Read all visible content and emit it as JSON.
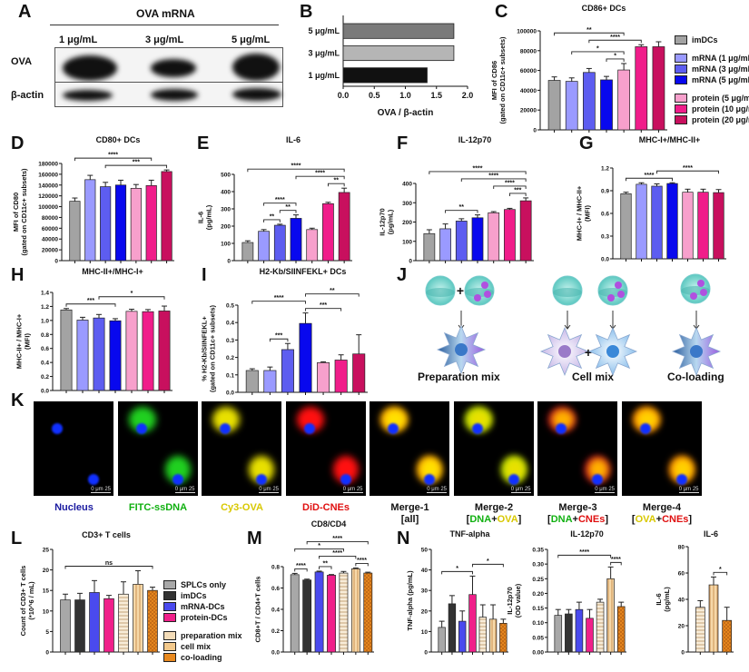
{
  "panels": {
    "A": "A",
    "B": "B",
    "C": "C",
    "D": "D",
    "E": "E",
    "F": "F",
    "G": "G",
    "H": "H",
    "I": "I",
    "J": "J",
    "K": "K",
    "L": "L",
    "M": "M",
    "N": "N"
  },
  "blot": {
    "header": "OVA mRNA",
    "lanes": [
      "1 μg/mL",
      "3 μg/mL",
      "5 μg/mL"
    ],
    "rows": [
      "OVA",
      "β-actin"
    ]
  },
  "colors": {
    "imDCs": "#a3a3a3",
    "mRNA1": "#9a9aff",
    "mRNA3": "#5d5df0",
    "mRNA5": "#0808ee",
    "protein5": "#f7a0cc",
    "protein10": "#f01d8a",
    "protein20": "#c8105e",
    "SPLCs": "#a8a8a8",
    "imDCs_dark": "#333333",
    "mRNA_DCs": "#4a4aee",
    "protein_DCs": "#f0208a",
    "prep": "#f3dcb8",
    "cellmix": "#f3c98c",
    "coload": "#e8891f",
    "blue_label": "#1a1aa0",
    "green_label": "#10b010",
    "yellow_label": "#d8c800",
    "red_label": "#e01010"
  },
  "legend_C": [
    {
      "label": "imDCs",
      "color": "#a3a3a3"
    },
    {
      "label": "mRNA (1 μg/mL)",
      "color": "#9a9aff"
    },
    {
      "label": "mRNA (3 μg/mL)",
      "color": "#5d5df0"
    },
    {
      "label": "mRNA (5 μg/mL)",
      "color": "#0808ee"
    },
    {
      "label": "protein (5 μg/mL)",
      "color": "#f7a0cc"
    },
    {
      "label": "protein (10 μg/mL)",
      "color": "#f01d8a"
    },
    {
      "label": "protein (20 μg/mL)",
      "color": "#c8105e"
    }
  ],
  "legend_L": [
    {
      "label": "SPLCs only",
      "color": "#a8a8a8"
    },
    {
      "label": "imDCs",
      "color": "#333333"
    },
    {
      "label": "mRNA-DCs",
      "color": "#4a4aee"
    },
    {
      "label": "protein-DCs",
      "color": "#f0208a"
    },
    {
      "label": "preparation mix",
      "color": "#f3dcb8"
    },
    {
      "label": "cell mix",
      "color": "#f3c98c"
    },
    {
      "label": "co-loading",
      "color": "#e8891f"
    }
  ],
  "diagram_J": {
    "labels": [
      "Preparation mix",
      "Cell mix",
      "Co-loading"
    ]
  },
  "images_K": {
    "labels": [
      {
        "parts": [
          {
            "t": "Nucleus",
            "c": "#1a1aa0"
          }
        ]
      },
      {
        "parts": [
          {
            "t": "FITC-ssDNA",
            "c": "#10b010"
          }
        ]
      },
      {
        "parts": [
          {
            "t": "Cy3-OVA",
            "c": "#d8c800"
          }
        ]
      },
      {
        "parts": [
          {
            "t": "DiD-CNEs",
            "c": "#e01010"
          }
        ]
      },
      {
        "parts": [
          {
            "t": "Merge-1",
            "c": "#111"
          },
          {
            "t": "\n[all]",
            "c": "#111"
          }
        ]
      },
      {
        "parts": [
          {
            "t": "Merge-2",
            "c": "#111"
          },
          {
            "t": "\n[",
            "c": "#111"
          },
          {
            "t": "DNA",
            "c": "#10b010"
          },
          {
            "t": "+",
            "c": "#111"
          },
          {
            "t": "OVA",
            "c": "#d8c800"
          },
          {
            "t": "]",
            "c": "#111"
          }
        ]
      },
      {
        "parts": [
          {
            "t": "Merge-3",
            "c": "#111"
          },
          {
            "t": "\n[",
            "c": "#111"
          },
          {
            "t": "DNA",
            "c": "#10b010"
          },
          {
            "t": "+",
            "c": "#111"
          },
          {
            "t": "CNEs",
            "c": "#e01010"
          },
          {
            "t": "]",
            "c": "#111"
          }
        ]
      },
      {
        "parts": [
          {
            "t": "Merge-4",
            "c": "#111"
          },
          {
            "t": "\n[",
            "c": "#111"
          },
          {
            "t": "OVA",
            "c": "#d8c800"
          },
          {
            "t": "+",
            "c": "#111"
          },
          {
            "t": "CNEs",
            "c": "#e01010"
          },
          {
            "t": "]",
            "c": "#111"
          }
        ]
      }
    ],
    "scale_bar": "0  μm  25"
  },
  "chart_data": [
    {
      "id": "B",
      "type": "bar",
      "orientation": "horizontal",
      "title": "",
      "xlabel": "OVA / β-actin",
      "ylabel": "",
      "categories": [
        "5 μg/mL",
        "3 μg/mL",
        "1 μg/mL"
      ],
      "values": [
        1.78,
        1.78,
        1.35
      ],
      "colors": [
        "#7a7a7a",
        "#b5b5b5",
        "#111111"
      ],
      "xlim": [
        0,
        2.0
      ],
      "xticks": [
        "0.0",
        "0.5",
        "1.0",
        "1.5",
        "2.0"
      ]
    },
    {
      "id": "C",
      "type": "bar",
      "title": "CD86+ DCs",
      "ylabel": "MFI of CD86\n(gated on CD11c+ subsets)",
      "ylim": [
        0,
        100000
      ],
      "yticks": [
        "0",
        "20000",
        "40000",
        "60000",
        "80000",
        "100000"
      ],
      "values": [
        50000,
        49000,
        58000,
        50500,
        60500,
        84000,
        84000
      ],
      "errors": [
        3500,
        3500,
        4000,
        3500,
        6500,
        2000,
        5000
      ],
      "colors": [
        "#a3a3a3",
        "#9a9aff",
        "#5d5df0",
        "#0808ee",
        "#f7a0cc",
        "#f01d8a",
        "#c8105e"
      ],
      "sig": [
        {
          "g": [
            3,
            4
          ],
          "l": "*"
        },
        {
          "g": [
            1,
            4
          ],
          "l": "*"
        },
        {
          "g": [
            0,
            4
          ],
          "l": "**"
        },
        {
          "g": [
            2,
            5
          ],
          "l": "****"
        }
      ]
    },
    {
      "id": "D",
      "type": "bar",
      "title": "CD80+ DCs",
      "ylabel": "MFI of CD80\n(gated on CD11c+ subsets)",
      "ylim": [
        0,
        180000
      ],
      "yticks": [
        "0",
        "20000",
        "40000",
        "60000",
        "80000",
        "100000",
        "120000",
        "140000",
        "160000",
        "180000"
      ],
      "values": [
        110000,
        150000,
        137000,
        140000,
        134000,
        139000,
        165000
      ],
      "errors": [
        6000,
        8000,
        8000,
        9000,
        7000,
        10000,
        3000
      ],
      "colors": [
        "#a3a3a3",
        "#9a9aff",
        "#5d5df0",
        "#0808ee",
        "#f7a0cc",
        "#f01d8a",
        "#c8105e"
      ],
      "sig": [
        {
          "g": [
            2,
            6
          ],
          "l": "***"
        },
        {
          "g": [
            0,
            5
          ],
          "l": "****"
        }
      ]
    },
    {
      "id": "E",
      "type": "bar",
      "title": "IL-6",
      "ylabel": "IL-6\n(pg/mL)",
      "ylim": [
        0,
        500
      ],
      "yticks": [
        "0",
        "100",
        "200",
        "300",
        "400",
        "500"
      ],
      "values": [
        105,
        170,
        205,
        245,
        180,
        330,
        395
      ],
      "errors": [
        10,
        10,
        6,
        20,
        8,
        8,
        25
      ],
      "colors": [
        "#a3a3a3",
        "#9a9aff",
        "#5d5df0",
        "#0808ee",
        "#f7a0cc",
        "#f01d8a",
        "#c8105e"
      ],
      "sig": [
        {
          "g": [
            1,
            2
          ],
          "l": "**"
        },
        {
          "g": [
            2,
            3
          ],
          "l": "**"
        },
        {
          "g": [
            1,
            3
          ],
          "l": "****"
        },
        {
          "g": [
            5,
            6
          ],
          "l": "**"
        },
        {
          "g": [
            3,
            6
          ],
          "l": "****"
        },
        {
          "g": [
            0,
            6
          ],
          "l": "****"
        }
      ]
    },
    {
      "id": "F",
      "type": "bar",
      "title": "IL-12p70",
      "ylabel": "IL-12p70\n(pg/mL)",
      "ylim": [
        0,
        400
      ],
      "yticks": [
        "0",
        "100",
        "200",
        "300",
        "400"
      ],
      "values": [
        140,
        165,
        205,
        222,
        248,
        265,
        310
      ],
      "errors": [
        20,
        25,
        12,
        15,
        6,
        6,
        15
      ],
      "colors": [
        "#a3a3a3",
        "#9a9aff",
        "#5d5df0",
        "#0808ee",
        "#f7a0cc",
        "#f01d8a",
        "#c8105e"
      ],
      "sig": [
        {
          "g": [
            1,
            3
          ],
          "l": "**"
        },
        {
          "g": [
            5,
            6
          ],
          "l": "***"
        },
        {
          "g": [
            4,
            6
          ],
          "l": "****"
        },
        {
          "g": [
            2,
            6
          ],
          "l": "****"
        },
        {
          "g": [
            0,
            6
          ],
          "l": "****"
        }
      ]
    },
    {
      "id": "G",
      "type": "bar",
      "title": "MHC-I+/MHC-II+",
      "ylabel": "MHC-I+ / MHC-II+\n(MFI)",
      "ylim": [
        0,
        1.2
      ],
      "yticks": [
        "0.0",
        "0.3",
        "0.6",
        "0.9",
        "1.2"
      ],
      "values": [
        0.86,
        0.985,
        0.96,
        0.995,
        0.88,
        0.88,
        0.875
      ],
      "errors": [
        0.02,
        0.02,
        0.03,
        0.01,
        0.04,
        0.04,
        0.04
      ],
      "colors": [
        "#a3a3a3",
        "#9a9aff",
        "#5d5df0",
        "#0808ee",
        "#f7a0cc",
        "#f01d8a",
        "#c8105e"
      ],
      "sig": [
        {
          "g": [
            0,
            3
          ],
          "l": "****"
        },
        {
          "g": [
            2,
            6
          ],
          "l": "****"
        }
      ]
    },
    {
      "id": "H",
      "type": "bar",
      "title": "MHC-II+/MHC-I+",
      "ylabel": "MHC-II+ / MHC-I+\n(MFI)",
      "ylim": [
        0,
        1.4
      ],
      "yticks": [
        "0.0",
        "0.2",
        "0.4",
        "0.6",
        "0.8",
        "1.0",
        "1.2",
        "1.4"
      ],
      "values": [
        1.15,
        1.005,
        1.035,
        0.995,
        1.13,
        1.125,
        1.135
      ],
      "errors": [
        0.02,
        0.04,
        0.05,
        0.03,
        0.03,
        0.03,
        0.07
      ],
      "colors": [
        "#a3a3a3",
        "#9a9aff",
        "#5d5df0",
        "#0808ee",
        "#f7a0cc",
        "#f01d8a",
        "#c8105e"
      ],
      "sig": [
        {
          "g": [
            0,
            3
          ],
          "l": "***"
        },
        {
          "g": [
            2,
            6
          ],
          "l": "*"
        }
      ]
    },
    {
      "id": "I",
      "type": "bar",
      "title": "H2-Kb/SIINFEKL+ DCs",
      "ylabel": "% H2-Kb/SIINFEKL+\n(gated on CD11c+ subsets)",
      "ylim": [
        0,
        0.5
      ],
      "yticks": [
        "0.0",
        "0.1",
        "0.2",
        "0.3",
        "0.4",
        "0.5"
      ],
      "values": [
        0.125,
        0.125,
        0.245,
        0.395,
        0.17,
        0.185,
        0.22
      ],
      "errors": [
        0.01,
        0.02,
        0.035,
        0.06,
        0.005,
        0.03,
        0.11
      ],
      "colors": [
        "#a3a3a3",
        "#9a9aff",
        "#5d5df0",
        "#0808ee",
        "#f7a0cc",
        "#f01d8a",
        "#c8105e"
      ],
      "sig": [
        {
          "g": [
            1,
            2
          ],
          "l": "***"
        },
        {
          "g": [
            3,
            5
          ],
          "l": "***"
        },
        {
          "g": [
            0,
            3
          ],
          "l": "****"
        },
        {
          "g": [
            3,
            6
          ],
          "l": "**"
        }
      ]
    },
    {
      "id": "L",
      "type": "bar",
      "title": "CD3+ T cells",
      "ylabel": "Count of CD3+ T cells\n(*10^6 / mL)",
      "ylim": [
        0,
        25
      ],
      "yticks": [
        "0",
        "5",
        "10",
        "15",
        "20",
        "25"
      ],
      "values": [
        12.7,
        12.7,
        14.5,
        13.0,
        14.1,
        16.5,
        15.0
      ],
      "errors": [
        1.4,
        1.6,
        2.9,
        0.8,
        3.0,
        3.3,
        0.8
      ],
      "colors": [
        "#a8a8a8",
        "#333333",
        "#4a4aee",
        "#f0208a",
        "#f3dcb8",
        "#f3c98c",
        "#e8891f"
      ],
      "patterns": [
        "",
        "",
        "",
        "",
        "h",
        "v",
        "x"
      ],
      "sig": [
        {
          "g": [
            0,
            6
          ],
          "l": "ns"
        }
      ]
    },
    {
      "id": "M",
      "type": "bar",
      "title": "CD8/CD4",
      "ylabel": "CD8+T / CD4+T cells",
      "ylim": [
        0,
        0.8
      ],
      "yticks": [
        "0.0",
        "0.2",
        "0.4",
        "0.6",
        "0.8"
      ],
      "values": [
        0.725,
        0.675,
        0.75,
        0.72,
        0.74,
        0.78,
        0.74
      ],
      "errors": [
        0.012,
        0.008,
        0.008,
        0.006,
        0.015,
        0.008,
        0.008
      ],
      "colors": [
        "#a8a8a8",
        "#333333",
        "#4a4aee",
        "#f0208a",
        "#f3dcb8",
        "#f3c98c",
        "#e8891f"
      ],
      "patterns": [
        "",
        "",
        "",
        "",
        "h",
        "v",
        "x"
      ],
      "sig": [
        {
          "g": [
            0,
            1
          ],
          "l": "****"
        },
        {
          "g": [
            2,
            3
          ],
          "l": "**"
        },
        {
          "g": [
            5,
            6
          ],
          "l": "****"
        },
        {
          "g": [
            1,
            6
          ],
          "l": "****"
        },
        {
          "g": [
            0,
            4
          ],
          "l": "*"
        },
        {
          "g": [
            2,
            5
          ],
          "l": "****"
        }
      ]
    },
    {
      "id": "N1",
      "type": "bar",
      "title": "TNF-alpha",
      "ylabel": "TNF-alpha (pg/mL)",
      "ylim": [
        0,
        50
      ],
      "yticks": [
        "0",
        "10",
        "20",
        "30",
        "40",
        "50"
      ],
      "values": [
        12,
        23.5,
        15,
        28,
        17,
        16,
        14
      ],
      "errors": [
        3,
        4,
        5,
        9,
        6,
        7,
        2
      ],
      "colors": [
        "#a8a8a8",
        "#333333",
        "#4a4aee",
        "#f0208a",
        "#f3dcb8",
        "#f3c98c",
        "#e8891f"
      ],
      "patterns": [
        "",
        "",
        "",
        "",
        "h",
        "v",
        "x"
      ],
      "sig": [
        {
          "g": [
            0,
            3
          ],
          "l": "*"
        },
        {
          "g": [
            3,
            6
          ],
          "l": "*"
        }
      ]
    },
    {
      "id": "N2",
      "type": "bar",
      "title": "IL-12p70",
      "ylabel": "IL-12p70\n(OD value)",
      "ylim": [
        0,
        0.35
      ],
      "yticks": [
        "0.00",
        "0.05",
        "0.10",
        "0.15",
        "0.20",
        "0.25",
        "0.30",
        "0.35"
      ],
      "values": [
        0.125,
        0.13,
        0.145,
        0.115,
        0.17,
        0.25,
        0.155
      ],
      "errors": [
        0.02,
        0.015,
        0.025,
        0.03,
        0.01,
        0.04,
        0.015
      ],
      "colors": [
        "#a8a8a8",
        "#333333",
        "#4a4aee",
        "#f0208a",
        "#f3dcb8",
        "#f3c98c",
        "#e8891f"
      ],
      "patterns": [
        "",
        "",
        "",
        "",
        "h",
        "v",
        "x"
      ],
      "sig": [
        {
          "g": [
            0,
            5
          ],
          "l": "****"
        },
        {
          "g": [
            5,
            6
          ],
          "l": "****"
        }
      ]
    },
    {
      "id": "N3",
      "type": "bar",
      "title": "IL-6",
      "ylabel": "IL-6\n(pg/mL)",
      "ylim": [
        0,
        80
      ],
      "yticks": [
        "0",
        "20",
        "40",
        "60",
        "80"
      ],
      "values": [
        34,
        51,
        24
      ],
      "errors": [
        5,
        6,
        10
      ],
      "colors": [
        "#f3dcb8",
        "#f3c98c",
        "#e8891f"
      ],
      "patterns": [
        "h",
        "v",
        "x"
      ],
      "sig": [
        {
          "g": [
            1,
            2
          ],
          "l": "*"
        }
      ]
    }
  ]
}
